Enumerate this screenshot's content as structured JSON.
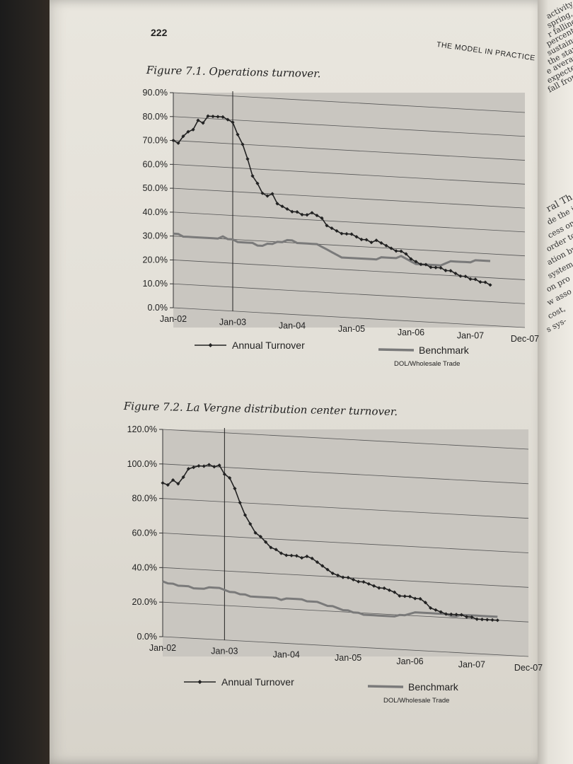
{
  "page": {
    "number": "222",
    "running_head": "THE MODEL IN PRACTICE"
  },
  "figures": {
    "fig1_caption": "Figure 7.1. Operations turnover.",
    "fig2_caption": "Figure 7.2. La Vergne distribution center turnover."
  },
  "chart_data": [
    {
      "type": "line",
      "title": "Figure 7.1. Operations turnover.",
      "y_ticks": [
        "90.0%",
        "80.0%",
        "70.0%",
        "60.0%",
        "50.0%",
        "40.0%",
        "30.0%",
        "20.0%",
        "10.0%",
        "0.0%"
      ],
      "ylim": [
        0,
        90
      ],
      "x_ticks": [
        "Jan-02",
        "Jan-03",
        "Jan-04",
        "Jan-05",
        "Jan-06",
        "Jan-07",
        "Dec-07"
      ],
      "x_tick_months": [
        0,
        12,
        24,
        36,
        48,
        60,
        71
      ],
      "grid": true,
      "marker_line_month": 12,
      "series": [
        {
          "name": "Annual Turnover",
          "marker": "diamond",
          "color": "#222222",
          "values": [
            70,
            69,
            72,
            74,
            75,
            79,
            78,
            81,
            81,
            81,
            81,
            80,
            79,
            74,
            70,
            64,
            57,
            54,
            50,
            49,
            50,
            46,
            45,
            44,
            43,
            43,
            42,
            42,
            43,
            42,
            41,
            38,
            37,
            36,
            35,
            35,
            35,
            34,
            33,
            33,
            32,
            33,
            32,
            31,
            30,
            29,
            29,
            28,
            26,
            25,
            24,
            24,
            23,
            23,
            23,
            22,
            22,
            21,
            20,
            20,
            19,
            19,
            18,
            18,
            17
          ]
        },
        {
          "name": "Benchmark",
          "subtitle": "DOL/Wholesale Trade",
          "color": "#7a7a7a",
          "values": [
            31,
            31,
            30,
            30,
            30,
            30,
            30,
            30,
            30,
            30,
            31,
            30,
            30,
            29,
            29,
            29,
            29,
            28,
            28,
            29,
            29,
            30,
            30,
            31,
            31,
            30,
            30,
            30,
            30,
            30,
            29,
            28,
            27,
            26,
            25,
            25,
            25,
            25,
            25,
            25,
            25,
            25,
            26,
            26,
            26,
            26,
            27,
            26,
            25,
            24,
            24,
            24,
            24,
            24,
            24,
            25,
            26,
            26,
            26,
            26,
            26,
            27,
            27,
            27,
            27
          ]
        }
      ]
    },
    {
      "type": "line",
      "title": "Figure 7.2. La Vergne distribution center turnover.",
      "y_ticks": [
        "120.0%",
        "100.0%",
        "80.0%",
        "60.0%",
        "40.0%",
        "20.0%",
        "0.0%"
      ],
      "ylim": [
        0,
        120
      ],
      "x_ticks": [
        "Jan-02",
        "Jan-03",
        "Jan-04",
        "Jan-05",
        "Jan-06",
        "Jan-07",
        "Dec-07"
      ],
      "x_tick_months": [
        0,
        12,
        24,
        36,
        48,
        60,
        71
      ],
      "grid": true,
      "marker_line_month": 12,
      "series": [
        {
          "name": "Annual Turnover",
          "marker": "diamond",
          "color": "#222222",
          "values": [
            89,
            88,
            91,
            89,
            93,
            98,
            99,
            100,
            100,
            101,
            100,
            101,
            96,
            94,
            88,
            80,
            73,
            68,
            63,
            61,
            58,
            55,
            54,
            52,
            51,
            51,
            51,
            50,
            51,
            50,
            48,
            46,
            44,
            42,
            41,
            40,
            40,
            39,
            38,
            38,
            37,
            36,
            35,
            35,
            34,
            33,
            31,
            31,
            31,
            30,
            30,
            28,
            25,
            24,
            23,
            22,
            22,
            22,
            22,
            21,
            21,
            20,
            20,
            20,
            20,
            20
          ]
        },
        {
          "name": "Benchmark",
          "subtitle": "DOL/Wholesale Trade",
          "color": "#7a7a7a",
          "values": [
            32,
            31,
            31,
            30,
            30,
            30,
            29,
            29,
            29,
            30,
            30,
            30,
            29,
            28,
            28,
            27,
            27,
            26,
            26,
            26,
            26,
            26,
            26,
            25,
            26,
            26,
            26,
            26,
            25,
            25,
            25,
            24,
            23,
            23,
            22,
            21,
            21,
            20,
            20,
            19,
            19,
            19,
            19,
            19,
            19,
            19,
            20,
            20,
            21,
            22,
            22,
            22,
            22,
            22,
            22,
            22,
            21,
            21,
            22,
            22,
            22,
            22,
            22,
            22,
            22,
            22
          ]
        }
      ]
    }
  ],
  "right_page_fragments": [
    "activity in",
    "spring, in ou",
    "r falling lev",
    "percent, o",
    "sustained s",
    "the start o",
    "e average",
    "expected to",
    "fall from",
    "ral Th",
    "de the is",
    "cess on t",
    "order to a",
    "ation by",
    "system a",
    "on pro",
    "w asso",
    "cost,",
    "s sys-"
  ]
}
